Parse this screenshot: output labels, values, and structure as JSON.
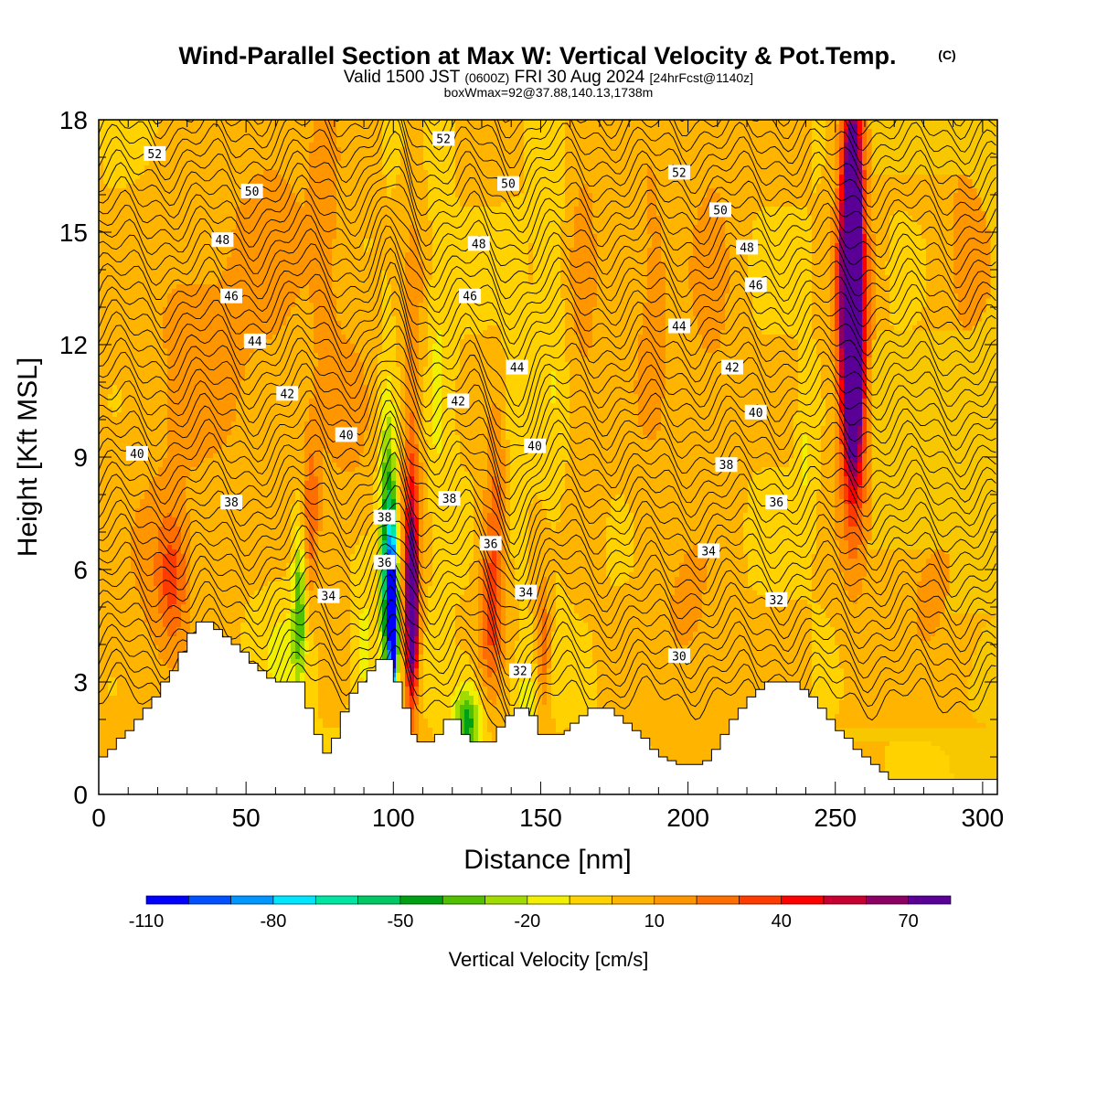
{
  "title": {
    "main": "Wind-Parallel Section at Max W: Vertical Velocity & Pot.Temp.",
    "copyright": "(C)",
    "valid_a": "Valid 1500 JST",
    "valid_b": "(0600Z)",
    "valid_c": "FRI 30 Aug 2024",
    "valid_d": "[24hrFcst@1140z]",
    "box": "boxWmax=92@37.88,140.13,1738m"
  },
  "chart_data": {
    "type": "heatmap",
    "xlabel": "Distance [nm]",
    "ylabel": "Height [Kft MSL]",
    "xlim": [
      0,
      305
    ],
    "ylim": [
      0,
      18
    ],
    "x_ticks": [
      0,
      50,
      100,
      150,
      200,
      250,
      300
    ],
    "y_ticks": [
      0,
      3,
      6,
      9,
      12,
      15,
      18
    ],
    "background_color": "#f7c800",
    "colorbar": {
      "label": "Vertical Velocity [cm/s]",
      "ticks": [
        -110,
        -80,
        -50,
        -20,
        10,
        40,
        70
      ],
      "colors": [
        "#0000ff",
        "#0050ff",
        "#0096ff",
        "#00e6ff",
        "#00e6a0",
        "#00c864",
        "#00a014",
        "#50c000",
        "#a0dc00",
        "#f0f000",
        "#ffd200",
        "#ffb400",
        "#ff9600",
        "#ff6e00",
        "#ff3c00",
        "#ff0000",
        "#c80032",
        "#8c0064",
        "#5a0096"
      ]
    },
    "terrain": [
      [
        0,
        1.0
      ],
      [
        3,
        1.0
      ],
      [
        3,
        1.2
      ],
      [
        6,
        1.2
      ],
      [
        6,
        1.5
      ],
      [
        9,
        1.5
      ],
      [
        9,
        1.7
      ],
      [
        12,
        1.7
      ],
      [
        12,
        2.0
      ],
      [
        15,
        2.0
      ],
      [
        15,
        2.3
      ],
      [
        18,
        2.3
      ],
      [
        18,
        2.6
      ],
      [
        21,
        2.6
      ],
      [
        21,
        3.0
      ],
      [
        24,
        3.0
      ],
      [
        24,
        3.3
      ],
      [
        27,
        3.3
      ],
      [
        27,
        3.8
      ],
      [
        30,
        3.8
      ],
      [
        30,
        4.3
      ],
      [
        33,
        4.3
      ],
      [
        33,
        4.6
      ],
      [
        39,
        4.6
      ],
      [
        39,
        4.4
      ],
      [
        42,
        4.4
      ],
      [
        42,
        4.2
      ],
      [
        45,
        4.2
      ],
      [
        45,
        4.0
      ],
      [
        48,
        4.0
      ],
      [
        48,
        3.8
      ],
      [
        51,
        3.8
      ],
      [
        51,
        3.5
      ],
      [
        54,
        3.5
      ],
      [
        54,
        3.3
      ],
      [
        57,
        3.3
      ],
      [
        57,
        3.1
      ],
      [
        60,
        3.1
      ],
      [
        60,
        3.0
      ],
      [
        70,
        3.0
      ],
      [
        70,
        2.3
      ],
      [
        73,
        2.3
      ],
      [
        73,
        1.6
      ],
      [
        76,
        1.6
      ],
      [
        76,
        1.1
      ],
      [
        79,
        1.1
      ],
      [
        79,
        1.5
      ],
      [
        82,
        1.5
      ],
      [
        82,
        2.2
      ],
      [
        85,
        2.2
      ],
      [
        85,
        2.7
      ],
      [
        88,
        2.7
      ],
      [
        88,
        3.0
      ],
      [
        91,
        3.0
      ],
      [
        91,
        3.3
      ],
      [
        94,
        3.3
      ],
      [
        94,
        3.6
      ],
      [
        97,
        3.6
      ],
      [
        97,
        3.6
      ],
      [
        100,
        3.6
      ],
      [
        100,
        3.0
      ],
      [
        103,
        3.0
      ],
      [
        103,
        2.3
      ],
      [
        106,
        2.3
      ],
      [
        106,
        1.6
      ],
      [
        108,
        1.6
      ],
      [
        108,
        1.4
      ],
      [
        114,
        1.4
      ],
      [
        114,
        1.6
      ],
      [
        117,
        1.6
      ],
      [
        117,
        2.0
      ],
      [
        123,
        2.0
      ],
      [
        123,
        1.6
      ],
      [
        126,
        1.6
      ],
      [
        126,
        1.4
      ],
      [
        135,
        1.4
      ],
      [
        135,
        1.8
      ],
      [
        138,
        1.8
      ],
      [
        138,
        2.1
      ],
      [
        141,
        2.1
      ],
      [
        141,
        2.3
      ],
      [
        146,
        2.3
      ],
      [
        146,
        2.1
      ],
      [
        149,
        2.1
      ],
      [
        149,
        1.6
      ],
      [
        158,
        1.6
      ],
      [
        158,
        1.7
      ],
      [
        160,
        1.7
      ],
      [
        160,
        1.9
      ],
      [
        163,
        1.9
      ],
      [
        163,
        2.1
      ],
      [
        166,
        2.1
      ],
      [
        166,
        2.3
      ],
      [
        175,
        2.3
      ],
      [
        175,
        2.1
      ],
      [
        178,
        2.1
      ],
      [
        178,
        1.9
      ],
      [
        181,
        1.9
      ],
      [
        181,
        1.7
      ],
      [
        184,
        1.7
      ],
      [
        184,
        1.5
      ],
      [
        187,
        1.5
      ],
      [
        187,
        1.2
      ],
      [
        190,
        1.2
      ],
      [
        190,
        1.0
      ],
      [
        193,
        1.0
      ],
      [
        193,
        0.9
      ],
      [
        196,
        0.9
      ],
      [
        196,
        0.8
      ],
      [
        205,
        0.8
      ],
      [
        205,
        0.9
      ],
      [
        208,
        0.9
      ],
      [
        208,
        1.2
      ],
      [
        211,
        1.2
      ],
      [
        211,
        1.6
      ],
      [
        214,
        1.6
      ],
      [
        214,
        2.0
      ],
      [
        217,
        2.0
      ],
      [
        217,
        2.3
      ],
      [
        220,
        2.3
      ],
      [
        220,
        2.6
      ],
      [
        223,
        2.6
      ],
      [
        223,
        2.8
      ],
      [
        226,
        2.8
      ],
      [
        226,
        3.0
      ],
      [
        232,
        3.0
      ],
      [
        232,
        3.0
      ],
      [
        238,
        3.0
      ],
      [
        238,
        2.8
      ],
      [
        241,
        2.8
      ],
      [
        241,
        2.6
      ],
      [
        244,
        2.6
      ],
      [
        244,
        2.3
      ],
      [
        247,
        2.3
      ],
      [
        247,
        2.0
      ],
      [
        250,
        2.0
      ],
      [
        250,
        1.7
      ],
      [
        253,
        1.7
      ],
      [
        253,
        1.5
      ],
      [
        256,
        1.5
      ],
      [
        256,
        1.2
      ],
      [
        259,
        1.2
      ],
      [
        259,
        1.0
      ],
      [
        262,
        1.0
      ],
      [
        262,
        0.8
      ],
      [
        265,
        0.8
      ],
      [
        265,
        0.6
      ],
      [
        268,
        0.6
      ],
      [
        268,
        0.4
      ],
      [
        305,
        0.4
      ]
    ],
    "w_features": [
      {
        "x": 34,
        "z": 12,
        "wx": 14,
        "wz": 3.2,
        "value": 14
      },
      {
        "x": 20,
        "z": 5.5,
        "wx": 9,
        "wz": 2.2,
        "value": 12
      },
      {
        "x": 25,
        "z": 5.8,
        "wx": 3.5,
        "wz": 1.2,
        "value": 24
      },
      {
        "x": 60,
        "z": 15.5,
        "wx": 10,
        "wz": 3.2,
        "value": 12
      },
      {
        "x": 72,
        "z": 7.5,
        "wx": 2.2,
        "wz": 1.6,
        "value": 26
      },
      {
        "x": 77,
        "z": 16,
        "wx": 4,
        "wz": 3.5,
        "value": 12
      },
      {
        "x": 68,
        "z": 5.2,
        "wx": 1.5,
        "wz": 1.5,
        "value": -38
      },
      {
        "x": 63,
        "z": 3.8,
        "wx": 6,
        "wz": 1.0,
        "value": -12
      },
      {
        "x": 85,
        "z": 10,
        "wx": 7,
        "wz": 2.5,
        "value": 12
      },
      {
        "x": 90,
        "z": 3.9,
        "wx": 3,
        "wz": 1.5,
        "value": -15
      },
      {
        "x": 98,
        "z": 6.4,
        "wx": 2.0,
        "wz": 2.7,
        "value": -55
      },
      {
        "x": 100,
        "z": 4.4,
        "wx": 0.9,
        "wz": 0.9,
        "value": -105
      },
      {
        "x": 99.5,
        "z": 5.3,
        "wx": 1.1,
        "wz": 1.4,
        "value": -85
      },
      {
        "x": 106,
        "z": 5.8,
        "wx": 1.8,
        "wz": 2.6,
        "value": 50
      },
      {
        "x": 106.5,
        "z": 4.8,
        "wx": 1.4,
        "wz": 1.4,
        "value": 60
      },
      {
        "x": 107,
        "z": 12,
        "wx": 3,
        "wz": 4,
        "value": 12
      },
      {
        "x": 115,
        "z": 11,
        "wx": 2.5,
        "wz": 3,
        "value": -12
      },
      {
        "x": 125,
        "z": 1.9,
        "wx": 3.5,
        "wz": 0.7,
        "value": -45
      },
      {
        "x": 133,
        "z": 4.8,
        "wx": 2.8,
        "wz": 1.6,
        "value": 28
      },
      {
        "x": 135,
        "z": 7.5,
        "wx": 3,
        "wz": 2,
        "value": 22
      },
      {
        "x": 141,
        "z": 10,
        "wx": 2.2,
        "wz": 2.2,
        "value": -12
      },
      {
        "x": 145,
        "z": 2.5,
        "wx": 3,
        "wz": 0.8,
        "value": -14
      },
      {
        "x": 151,
        "z": 4.0,
        "wx": 1.6,
        "wz": 1.3,
        "value": 28
      },
      {
        "x": 155,
        "z": 13,
        "wx": 3.5,
        "wz": 4,
        "value": -12
      },
      {
        "x": 164,
        "z": 14,
        "wx": 6,
        "wz": 4,
        "value": 13
      },
      {
        "x": 188,
        "z": 13,
        "wx": 6,
        "wz": 4,
        "value": 13
      },
      {
        "x": 208,
        "z": 14,
        "wx": 6,
        "wz": 4,
        "value": 13
      },
      {
        "x": 200,
        "z": 4.5,
        "wx": 8,
        "wz": 1.8,
        "value": 12
      },
      {
        "x": 240,
        "z": 9.0,
        "wx": 2,
        "wz": 1.2,
        "value": -12
      },
      {
        "x": 256,
        "z": 13,
        "wx": 4,
        "wz": 4.5,
        "value": 45
      },
      {
        "x": 255,
        "z": 13.3,
        "wx": 2.3,
        "wz": 2.3,
        "value": 80
      },
      {
        "x": 256,
        "z": 16.5,
        "wx": 2,
        "wz": 1.8,
        "value": 55
      },
      {
        "x": 256.5,
        "z": 10.5,
        "wx": 2,
        "wz": 1.6,
        "value": 55
      },
      {
        "x": 282,
        "z": 6.0,
        "wx": 10,
        "wz": 2,
        "value": 12
      },
      {
        "x": 295,
        "z": 15,
        "wx": 8,
        "wz": 4,
        "value": 12
      }
    ],
    "theta": {
      "min": 29,
      "max": 53,
      "labels": [
        {
          "text": "52",
          "x": 19,
          "z": 17.1
        },
        {
          "text": "52",
          "x": 117,
          "z": 17.5
        },
        {
          "text": "52",
          "x": 197,
          "z": 16.6
        },
        {
          "text": "50",
          "x": 52,
          "z": 16.1
        },
        {
          "text": "50",
          "x": 139,
          "z": 16.3
        },
        {
          "text": "50",
          "x": 211,
          "z": 15.6
        },
        {
          "text": "48",
          "x": 42,
          "z": 14.8
        },
        {
          "text": "48",
          "x": 129,
          "z": 14.7
        },
        {
          "text": "48",
          "x": 220,
          "z": 14.6
        },
        {
          "text": "46",
          "x": 45,
          "z": 13.3
        },
        {
          "text": "46",
          "x": 126,
          "z": 13.3
        },
        {
          "text": "46",
          "x": 223,
          "z": 13.6
        },
        {
          "text": "44",
          "x": 53,
          "z": 12.1
        },
        {
          "text": "44",
          "x": 142,
          "z": 11.4
        },
        {
          "text": "44",
          "x": 197,
          "z": 12.5
        },
        {
          "text": "42",
          "x": 64,
          "z": 10.7
        },
        {
          "text": "42",
          "x": 122,
          "z": 10.5
        },
        {
          "text": "42",
          "x": 215,
          "z": 11.4
        },
        {
          "text": "40",
          "x": 13,
          "z": 9.1
        },
        {
          "text": "40",
          "x": 84,
          "z": 9.6
        },
        {
          "text": "40",
          "x": 148,
          "z": 9.3
        },
        {
          "text": "40",
          "x": 223,
          "z": 10.2
        },
        {
          "text": "38",
          "x": 45,
          "z": 7.8
        },
        {
          "text": "38",
          "x": 97,
          "z": 7.4
        },
        {
          "text": "38",
          "x": 119,
          "z": 7.9
        },
        {
          "text": "38",
          "x": 213,
          "z": 8.8
        },
        {
          "text": "36",
          "x": 97,
          "z": 6.2
        },
        {
          "text": "36",
          "x": 133,
          "z": 6.7
        },
        {
          "text": "36",
          "x": 230,
          "z": 7.8
        },
        {
          "text": "34",
          "x": 78,
          "z": 5.3
        },
        {
          "text": "34",
          "x": 145,
          "z": 5.4
        },
        {
          "text": "34",
          "x": 207,
          "z": 6.5
        },
        {
          "text": "32",
          "x": 143,
          "z": 3.3
        },
        {
          "text": "32",
          "x": 230,
          "z": 5.2
        },
        {
          "text": "30",
          "x": 197,
          "z": 3.7
        }
      ]
    }
  }
}
